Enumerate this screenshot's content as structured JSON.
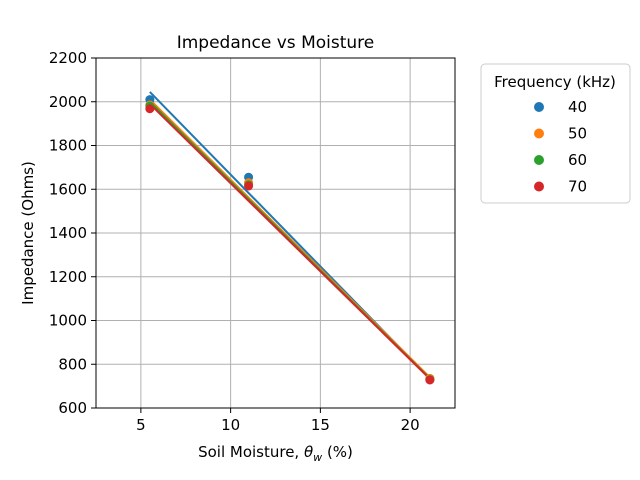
{
  "chart_data": {
    "type": "scatter",
    "title": "Impedance vs Moisture",
    "xlabel_prefix": "Soil Moisture, ",
    "xlabel_symbol": "θ",
    "xlabel_subscript": "w",
    "xlabel_suffix": " (%)",
    "ylabel": "Impedance (Ohms)",
    "xlim": [
      2.5,
      22.5
    ],
    "ylim": [
      600,
      2200
    ],
    "xticks": [
      5,
      10,
      15,
      20
    ],
    "yticks": [
      600,
      800,
      1000,
      1200,
      1400,
      1600,
      1800,
      2000,
      2200
    ],
    "grid": true,
    "legend": {
      "title": "Frequency (kHz)",
      "placement": "outside-right"
    },
    "series": [
      {
        "name": "40",
        "color": "#1f77b4",
        "points": [
          [
            5.5,
            2010
          ],
          [
            11.0,
            1655
          ],
          [
            21.1,
            735
          ]
        ],
        "fit": [
          [
            5.5,
            2045
          ],
          [
            21.1,
            735
          ]
        ]
      },
      {
        "name": "50",
        "color": "#ff7f0e",
        "points": [
          [
            5.5,
            1985
          ],
          [
            11.0,
            1630
          ],
          [
            21.1,
            735
          ]
        ],
        "fit": [
          [
            5.5,
            2010
          ],
          [
            21.1,
            740
          ]
        ]
      },
      {
        "name": "60",
        "color": "#2ca02c",
        "points": [
          [
            5.5,
            1980
          ],
          [
            11.0,
            1620
          ],
          [
            21.1,
            730
          ]
        ],
        "fit": [
          [
            5.5,
            2000
          ],
          [
            21.1,
            735
          ]
        ]
      },
      {
        "name": "70",
        "color": "#d62728",
        "points": [
          [
            5.5,
            1968
          ],
          [
            11.0,
            1615
          ],
          [
            21.1,
            728
          ]
        ],
        "fit": [
          [
            5.5,
            1990
          ],
          [
            21.1,
            733
          ]
        ]
      }
    ]
  }
}
